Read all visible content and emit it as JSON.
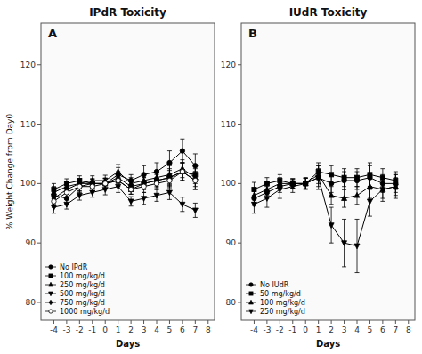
{
  "chart_data": [
    {
      "type": "line",
      "title": "IPdR Toxicity",
      "annotation": "A",
      "xlabel": "Days",
      "ylabel": "% Weight Change from Day0",
      "x": [
        -4,
        -3,
        -2,
        -1,
        0,
        1,
        2,
        3,
        4,
        5,
        6,
        7
      ],
      "series": [
        {
          "name": "No IPdR",
          "color": "black",
          "marker": "circle",
          "values": [
            98.0,
            97.5,
            99.5,
            100.0,
            100.0,
            101.5,
            100.5,
            101.5,
            102.0,
            103.5,
            105.5,
            103.0
          ],
          "errors": [
            1.2,
            1.0,
            1.0,
            0.8,
            0.9,
            1.2,
            1.0,
            1.5,
            1.5,
            2.0,
            2.0,
            2.0
          ]
        },
        {
          "name": "100 mg/kg/d",
          "color": "black",
          "marker": "square",
          "values": [
            99.0,
            100.0,
            100.5,
            100.0,
            100.0,
            100.5,
            99.0,
            100.0,
            100.5,
            101.0,
            102.0,
            101.5
          ],
          "errors": [
            1.0,
            0.8,
            0.8,
            0.7,
            0.8,
            1.0,
            0.8,
            1.0,
            1.0,
            1.2,
            1.5,
            1.5
          ]
        },
        {
          "name": "250 mg/kg/d",
          "color": "black",
          "marker": "triangle-up",
          "values": [
            98.5,
            99.5,
            100.0,
            100.5,
            100.5,
            102.0,
            100.0,
            100.5,
            101.0,
            101.5,
            102.5,
            101.0
          ],
          "errors": [
            1.0,
            0.8,
            0.8,
            0.8,
            0.9,
            1.2,
            1.0,
            1.0,
            1.2,
            1.5,
            1.5,
            1.5
          ]
        },
        {
          "name": "500 mg/kg/d",
          "color": "black",
          "marker": "triangle-down",
          "values": [
            96.0,
            96.5,
            98.0,
            98.5,
            99.0,
            99.5,
            97.0,
            97.5,
            98.0,
            98.5,
            96.5,
            95.5
          ],
          "errors": [
            1.0,
            0.8,
            0.8,
            0.8,
            0.9,
            1.0,
            0.8,
            1.0,
            1.0,
            1.2,
            1.2,
            1.2
          ]
        },
        {
          "name": "750 mg/kg/d",
          "color": "black",
          "marker": "diamond",
          "values": [
            97.5,
            99.0,
            100.0,
            100.0,
            100.0,
            101.0,
            99.5,
            100.0,
            100.5,
            101.0,
            102.0,
            100.5
          ],
          "errors": [
            1.0,
            0.8,
            0.8,
            0.8,
            0.9,
            1.0,
            0.8,
            1.0,
            1.2,
            1.5,
            1.5,
            1.5
          ]
        },
        {
          "name": "1000 mg/kg/d",
          "color": "black",
          "marker": "circle-open",
          "values": [
            97.0,
            98.5,
            99.5,
            99.5,
            100.0,
            100.5,
            99.0,
            99.5,
            100.0,
            100.5,
            102.0,
            100.5
          ],
          "errors": [
            1.0,
            0.8,
            0.8,
            0.8,
            0.9,
            1.0,
            0.8,
            1.0,
            1.0,
            1.2,
            1.5,
            1.5
          ]
        }
      ],
      "xlim": [
        -5,
        8.5
      ],
      "ylim": [
        77,
        127
      ],
      "xticks": [
        -4,
        -3,
        -2,
        -1,
        0,
        1,
        2,
        3,
        4,
        5,
        6,
        7,
        8
      ],
      "yticks": [
        80,
        90,
        100,
        110,
        120
      ],
      "legend": "lower left",
      "grid": false
    },
    {
      "type": "line",
      "title": "IUdR Toxicity",
      "annotation": "B",
      "xlabel": "Days",
      "x": [
        -4,
        -3,
        -2,
        -1,
        0,
        1,
        2,
        3,
        4,
        5,
        6,
        7
      ],
      "series": [
        {
          "name": "No IUdR",
          "color": "black",
          "marker": "circle",
          "values": [
            97.5,
            98.5,
            99.5,
            100.0,
            100.0,
            101.0,
            100.0,
            100.5,
            100.5,
            101.0,
            100.0,
            100.0
          ],
          "errors": [
            1.2,
            1.0,
            1.0,
            0.8,
            0.9,
            1.5,
            1.5,
            1.5,
            1.5,
            2.0,
            1.5,
            1.5
          ]
        },
        {
          "name": "50 mg/kg/d",
          "color": "black",
          "marker": "square",
          "values": [
            99.0,
            100.0,
            100.5,
            100.0,
            100.0,
            102.0,
            101.5,
            101.0,
            101.0,
            101.5,
            101.0,
            100.5
          ],
          "errors": [
            1.2,
            1.0,
            1.0,
            0.8,
            0.9,
            1.5,
            1.5,
            1.5,
            1.5,
            2.0,
            1.5,
            1.5
          ]
        },
        {
          "name": "100 mg/kg/d",
          "color": "black",
          "marker": "triangle-up",
          "values": [
            98.0,
            99.0,
            100.0,
            100.0,
            100.0,
            101.5,
            98.0,
            97.5,
            98.0,
            99.5,
            99.0,
            99.5
          ],
          "errors": [
            1.2,
            1.0,
            1.0,
            0.8,
            0.9,
            1.5,
            1.5,
            1.5,
            1.5,
            2.0,
            1.5,
            1.5
          ]
        },
        {
          "name": "250 mg/kg/d",
          "color": "black",
          "marker": "triangle-down",
          "values": [
            96.5,
            97.5,
            99.0,
            99.5,
            100.0,
            101.0,
            93.0,
            90.0,
            89.5,
            97.0,
            99.0,
            99.5
          ],
          "errors": [
            1.5,
            1.5,
            1.5,
            1.0,
            1.0,
            2.0,
            3.0,
            4.0,
            4.5,
            2.5,
            2.0,
            2.0
          ]
        }
      ],
      "xlim": [
        -5,
        8.5
      ],
      "ylim": [
        77,
        127
      ],
      "xticks": [
        -4,
        -3,
        -2,
        -1,
        0,
        1,
        2,
        3,
        4,
        5,
        6,
        7,
        8
      ],
      "yticks": [
        80,
        90,
        100,
        110,
        120
      ],
      "legend": "lower left",
      "grid": false
    }
  ]
}
